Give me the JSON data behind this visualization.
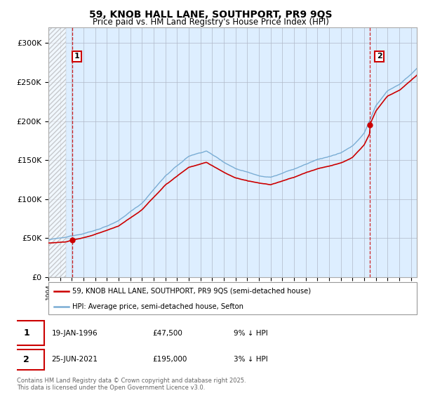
{
  "title_line1": "59, KNOB HALL LANE, SOUTHPORT, PR9 9QS",
  "title_line2": "Price paid vs. HM Land Registry's House Price Index (HPI)",
  "ylim": [
    0,
    320000
  ],
  "yticks": [
    0,
    50000,
    100000,
    150000,
    200000,
    250000,
    300000
  ],
  "ytick_labels": [
    "£0",
    "£50K",
    "£100K",
    "£150K",
    "£200K",
    "£250K",
    "£300K"
  ],
  "plot_bg_color": "#ddeeff",
  "grid_color": "#b0b8c8",
  "red_line_color": "#cc0000",
  "blue_line_color": "#7aadd4",
  "sale1_date_num": 1996.05,
  "sale1_price": 47500,
  "sale1_label": "1",
  "sale2_date_num": 2021.49,
  "sale2_price": 195000,
  "sale2_label": "2",
  "legend_entry1": "59, KNOB HALL LANE, SOUTHPORT, PR9 9QS (semi-detached house)",
  "legend_entry2": "HPI: Average price, semi-detached house, Sefton",
  "table_row1": [
    "1",
    "19-JAN-1996",
    "£47,500",
    "9% ↓ HPI"
  ],
  "table_row2": [
    "2",
    "25-JUN-2021",
    "£195,000",
    "3% ↓ HPI"
  ],
  "footnote": "Contains HM Land Registry data © Crown copyright and database right 2025.\nThis data is licensed under the Open Government Licence v3.0.",
  "xmin": 1994,
  "xmax": 2025.5,
  "hatch_end": 1995.5
}
